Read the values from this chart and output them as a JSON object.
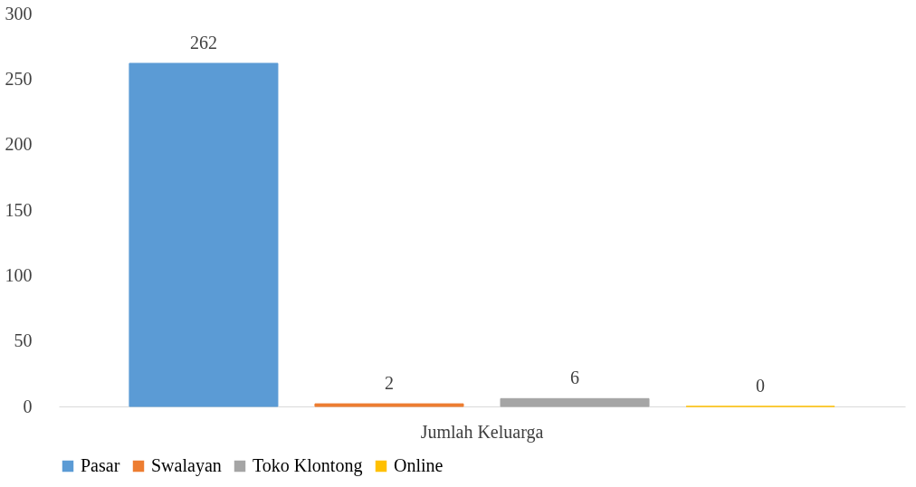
{
  "chart_data": {
    "type": "bar",
    "categories": [
      "Jumlah Keluarga"
    ],
    "series": [
      {
        "name": "Pasar",
        "color": "#5b9bd5",
        "values": [
          262
        ]
      },
      {
        "name": "Swalayan",
        "color": "#ed7d31",
        "values": [
          2
        ]
      },
      {
        "name": "Toko Klontong",
        "color": "#a5a5a5",
        "values": [
          6
        ]
      },
      {
        "name": "Online",
        "color": "#ffc000",
        "values": [
          0
        ]
      }
    ],
    "ylim": [
      0,
      300
    ],
    "yticks": [
      0,
      50,
      100,
      150,
      200,
      250,
      300
    ],
    "grid": false,
    "legend": "bottom",
    "data_labels": true
  }
}
